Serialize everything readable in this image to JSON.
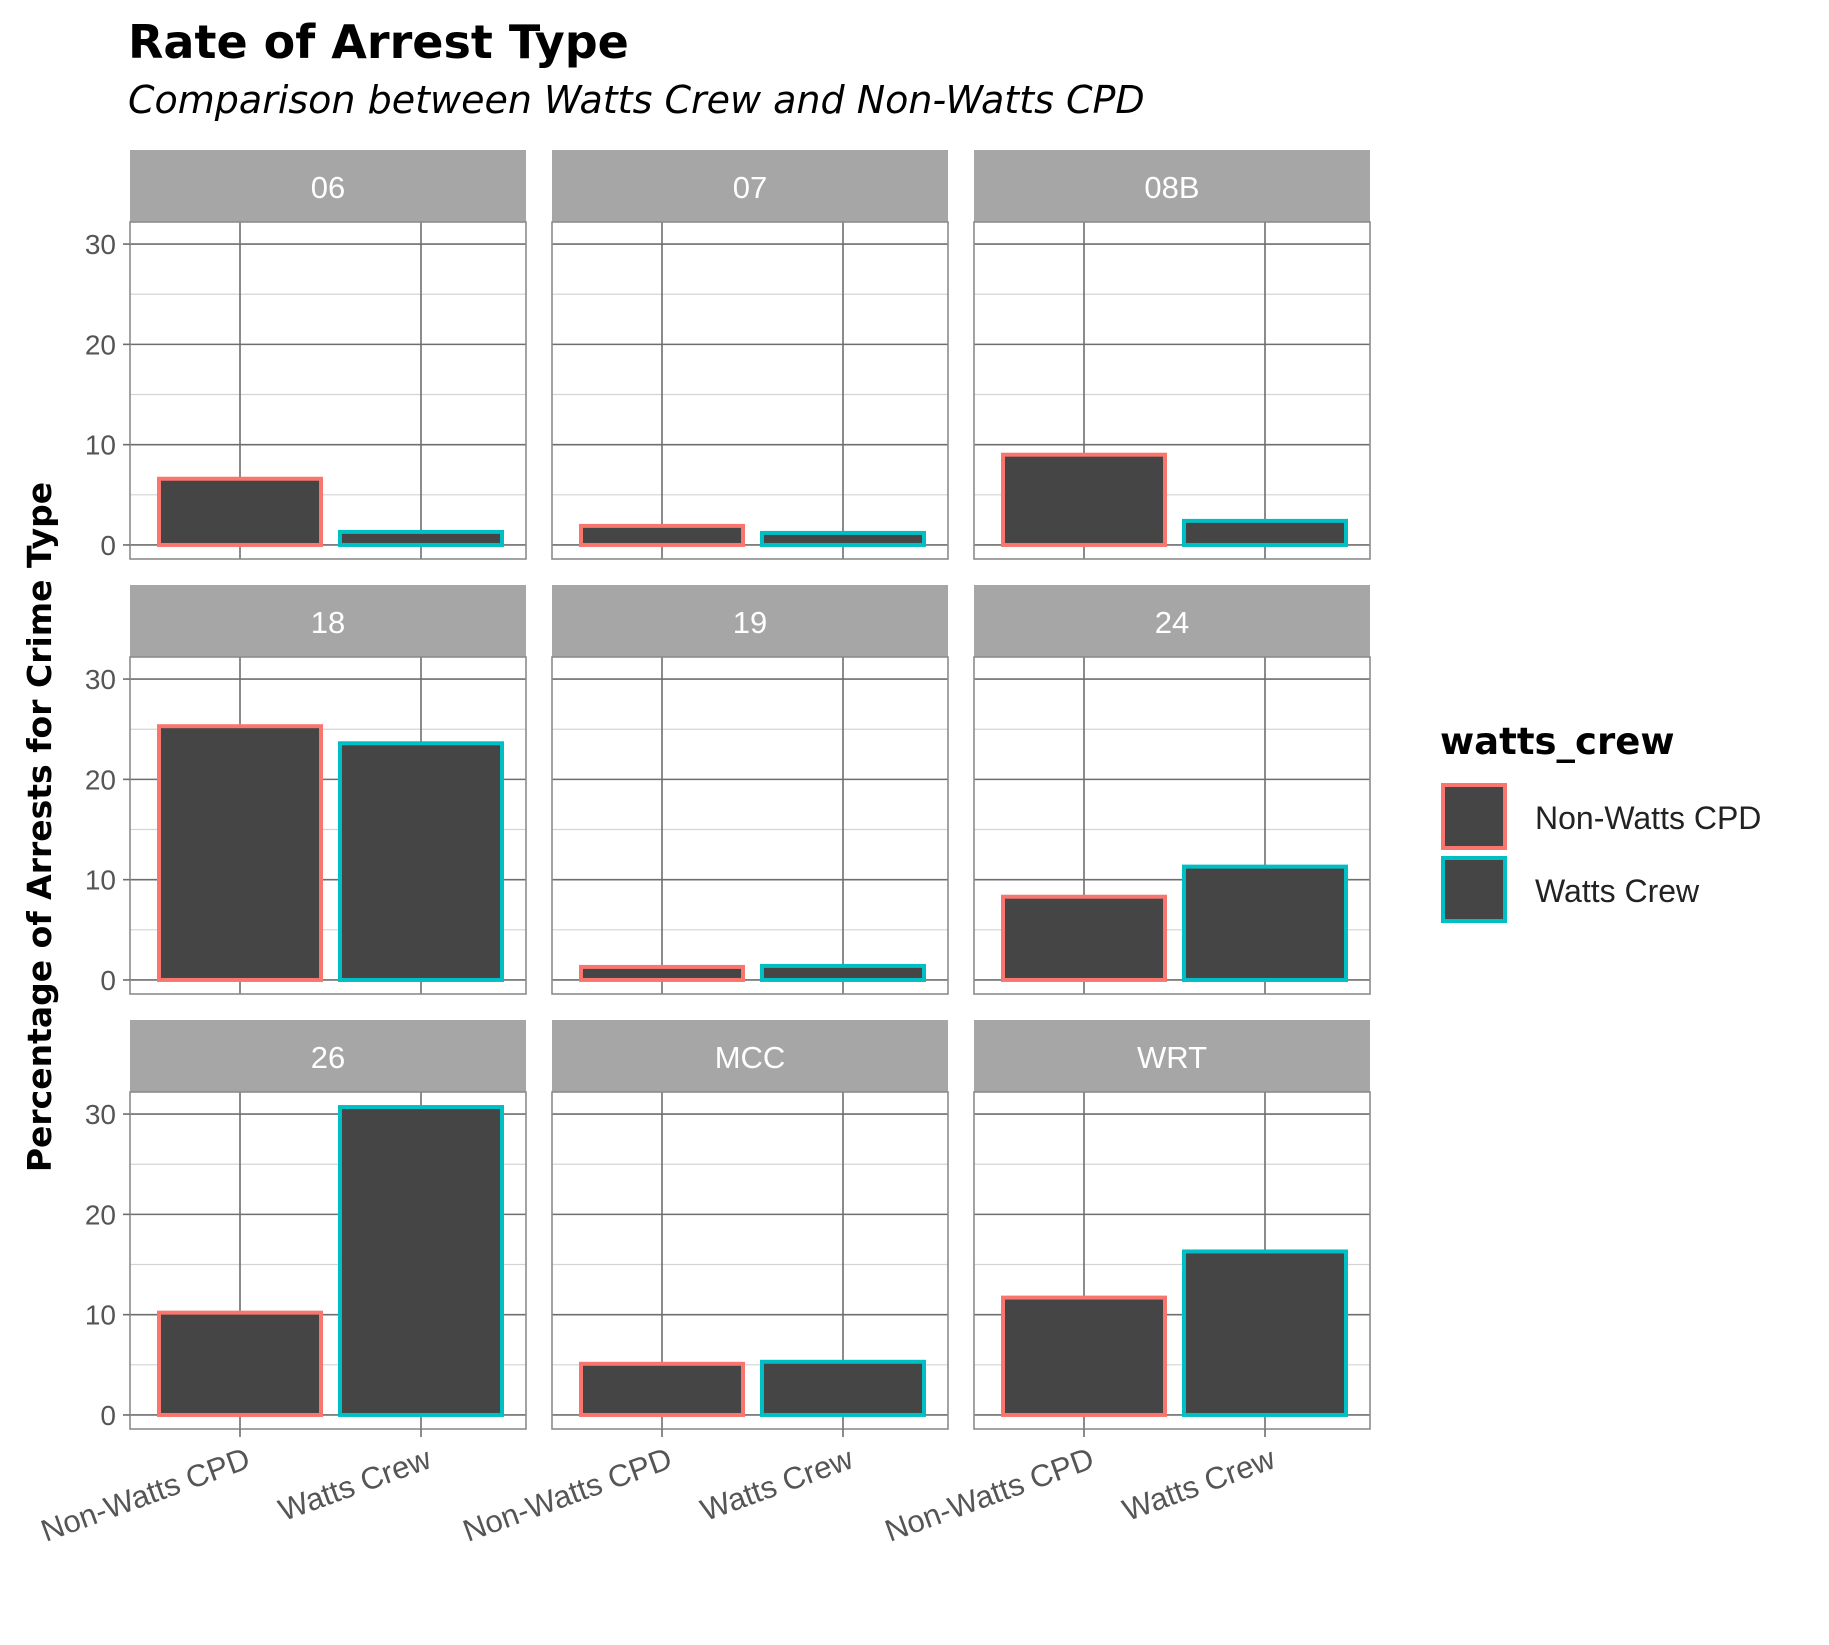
{
  "chart_data": {
    "type": "bar",
    "title": "Rate of Arrest Type",
    "subtitle": "Comparison between Watts Crew and Non-Watts CPD",
    "ylabel": "Percentage of Arrests for Crime Type",
    "xlabel": "",
    "categories": [
      "Non-Watts CPD",
      "Watts Crew"
    ],
    "ylim": [
      -1.4,
      32.2
    ],
    "yticks": [
      0,
      10,
      20,
      30
    ],
    "grid": true,
    "legend": {
      "title": "watts_crew",
      "position": "right",
      "entries": [
        {
          "label": "Non-Watts CPD",
          "color": "#F8766D"
        },
        {
          "label": "Watts Crew",
          "color": "#00BFC4"
        }
      ]
    },
    "bar_fill": "#454545",
    "strip_fill": "#A6A6A6",
    "facets": [
      {
        "label": "06",
        "values": [
          6.6,
          1.3
        ]
      },
      {
        "label": "07",
        "values": [
          1.9,
          1.2
        ]
      },
      {
        "label": "08B",
        "values": [
          9.0,
          2.4
        ]
      },
      {
        "label": "18",
        "values": [
          25.3,
          23.6
        ]
      },
      {
        "label": "19",
        "values": [
          1.3,
          1.4
        ]
      },
      {
        "label": "24",
        "values": [
          8.3,
          11.3
        ]
      },
      {
        "label": "26",
        "values": [
          10.2,
          30.7
        ]
      },
      {
        "label": "MCC",
        "values": [
          5.1,
          5.3
        ]
      },
      {
        "label": "WRT",
        "values": [
          11.7,
          16.3
        ]
      }
    ]
  }
}
